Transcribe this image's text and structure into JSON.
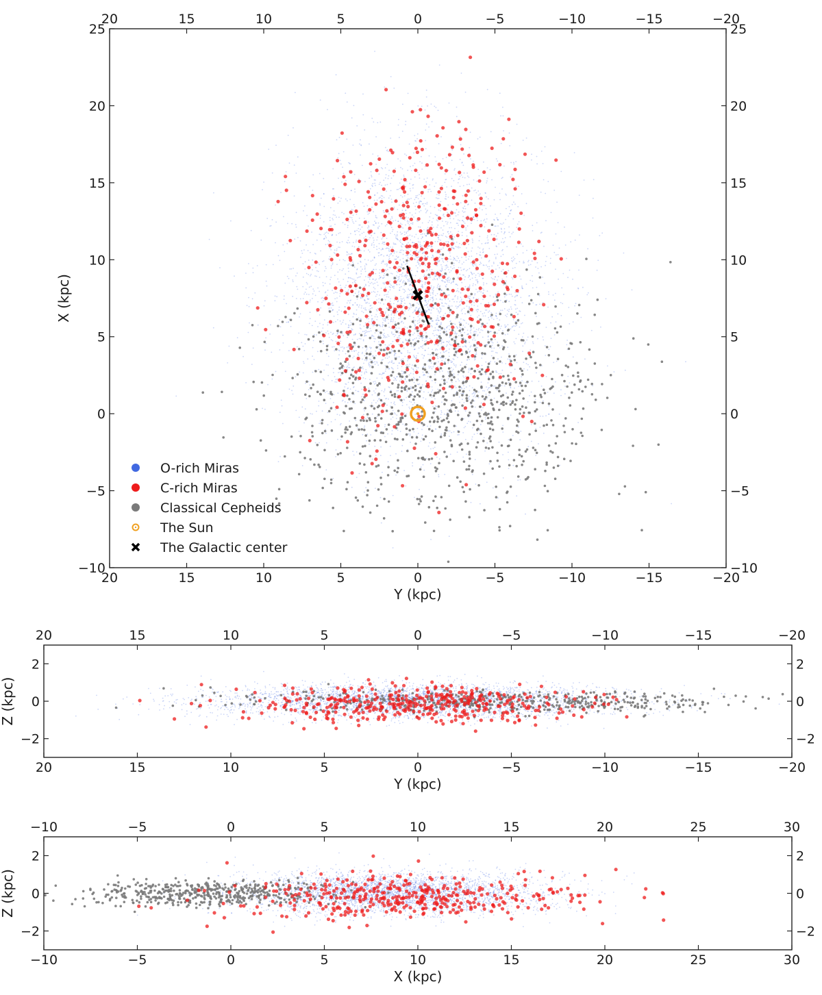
{
  "colors": {
    "o_rich": "#4169e1",
    "c_rich": "#ee1c1c",
    "cepheid": "#7a7a7a",
    "sun": "#f0a020",
    "galactic_center": "#000000"
  },
  "legend": [
    {
      "key": "o_rich",
      "label": "O-rich Miras",
      "marker": "dot"
    },
    {
      "key": "c_rich",
      "label": "C-rich Miras",
      "marker": "dot"
    },
    {
      "key": "cepheid",
      "label": "Classical Cepheids",
      "marker": "dot"
    },
    {
      "key": "sun",
      "label": "The Sun",
      "marker": "sun-symbol"
    },
    {
      "key": "galactic_center",
      "label": "The Galactic center",
      "marker": "x-mark"
    }
  ],
  "chart_data": [
    {
      "type": "scatter",
      "panel": "top",
      "xlabel": "Y (kpc)",
      "ylabel": "X (kpc)",
      "xlim": [
        20,
        -20
      ],
      "ylim": [
        -10,
        25
      ],
      "x_ticks": [
        20,
        15,
        10,
        5,
        0,
        -5,
        -10,
        -15,
        -20
      ],
      "y_ticks": [
        -10,
        -5,
        0,
        5,
        10,
        15,
        20,
        25
      ],
      "mirror_ticks": true,
      "grid": false,
      "legend_position": "lower-left",
      "markers": {
        "sun": {
          "x": 0,
          "y": 0
        },
        "galactic_center": {
          "x": 0,
          "y": 7.7
        },
        "bar": {
          "x1": 0.7,
          "y1": 9.6,
          "x2": -0.7,
          "y2": 5.8
        }
      },
      "series": [
        {
          "name": "O-rich Miras",
          "key": "o_rich",
          "model": {
            "center": [
              0,
              7.6
            ],
            "spread": [
              4.2,
              4.8
            ],
            "n": 4200
          }
        },
        {
          "name": "C-rich Miras",
          "key": "c_rich",
          "model": {
            "center": [
              -0.2,
              9.0
            ],
            "spread": [
              3.6,
              5.2
            ],
            "n": 420
          }
        },
        {
          "name": "Classical Cepheids",
          "key": "cepheid",
          "model": {
            "center": [
              -1.5,
              1.0
            ],
            "spread": [
              5.0,
              3.6
            ],
            "n": 900
          }
        }
      ]
    },
    {
      "type": "scatter",
      "panel": "middle",
      "xlabel": "Y (kpc)",
      "ylabel": "Z (kpc)",
      "xlim": [
        20,
        -20
      ],
      "ylim": [
        -3,
        3
      ],
      "x_ticks": [
        20,
        15,
        10,
        5,
        0,
        -5,
        -10,
        -15,
        -20
      ],
      "y_ticks": [
        -2,
        0,
        2
      ],
      "mirror_ticks": true,
      "grid": false,
      "series": [
        {
          "name": "O-rich Miras",
          "key": "o_rich",
          "model": {
            "center": [
              0,
              0
            ],
            "spread": [
              5.5,
              0.45
            ],
            "n": 3500
          }
        },
        {
          "name": "C-rich Miras",
          "key": "c_rich",
          "model": {
            "center": [
              0,
              -0.2
            ],
            "spread": [
              4.5,
              0.5
            ],
            "n": 380
          }
        },
        {
          "name": "Classical Cepheids",
          "key": "cepheid",
          "model": {
            "center": [
              -5,
              0
            ],
            "spread": [
              7.0,
              0.3
            ],
            "n": 500
          }
        }
      ]
    },
    {
      "type": "scatter",
      "panel": "bottom",
      "xlabel": "X (kpc)",
      "ylabel": "Z (kpc)",
      "xlim": [
        -10,
        30
      ],
      "ylim": [
        -3,
        3
      ],
      "x_ticks": [
        -10,
        -5,
        0,
        5,
        10,
        15,
        20,
        25,
        30
      ],
      "y_ticks": [
        -2,
        0,
        2
      ],
      "mirror_ticks": true,
      "grid": false,
      "series": [
        {
          "name": "O-rich Miras",
          "key": "o_rich",
          "model": {
            "center": [
              8.5,
              0
            ],
            "spread": [
              4.0,
              0.55
            ],
            "n": 3500
          }
        },
        {
          "name": "C-rich Miras",
          "key": "c_rich",
          "model": {
            "center": [
              9.0,
              -0.2
            ],
            "spread": [
              4.8,
              0.6
            ],
            "n": 380
          }
        },
        {
          "name": "Classical Cepheids",
          "key": "cepheid",
          "model": {
            "center": [
              -1.5,
              0
            ],
            "spread": [
              3.2,
              0.35
            ],
            "n": 500
          }
        }
      ]
    }
  ]
}
